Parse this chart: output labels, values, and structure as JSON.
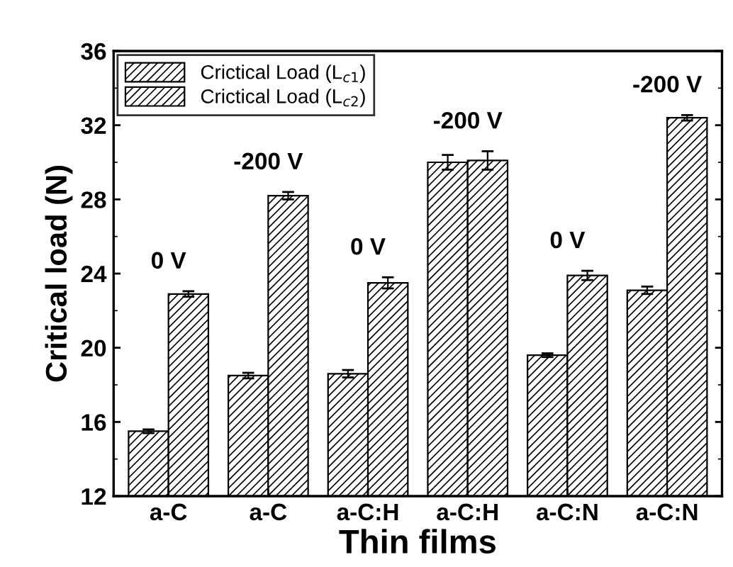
{
  "chart_data": {
    "type": "bar",
    "xlabel": "Thin films",
    "ylabel": "Critical load (N)",
    "categories": [
      "a-C",
      "a-C",
      "a-C:H",
      "a-C:H",
      "a-C:N",
      "a-C:N"
    ],
    "series": [
      {
        "name": "Crictical Load (L$_{c1}$)",
        "color": "#000000",
        "values": [
          15.5,
          18.5,
          18.6,
          30.0,
          19.6,
          23.1
        ],
        "errors": [
          0.1,
          0.15,
          0.2,
          0.4,
          0.1,
          0.2
        ]
      },
      {
        "name": "Crictical Load (L$_{c2}$)",
        "color": "#000000",
        "values": [
          22.9,
          28.2,
          23.5,
          30.1,
          23.9,
          32.4
        ],
        "errors": [
          0.15,
          0.2,
          0.3,
          0.5,
          0.25,
          0.15
        ]
      }
    ],
    "annotations": [
      "0 V",
      "-200 V",
      "0 V",
      "-200 V",
      "0 V",
      "-200 V"
    ],
    "ylim": [
      12,
      36
    ],
    "yticks": [
      12,
      16,
      20,
      24,
      28,
      32,
      36
    ],
    "legend": "top left",
    "grid": false
  }
}
